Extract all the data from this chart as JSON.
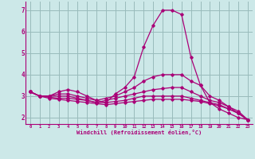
{
  "xlabel": "Windchill (Refroidissement éolien,°C)",
  "bg_color": "#cce8e8",
  "line_color": "#aa0077",
  "grid_color": "#99bbbb",
  "xlim": [
    -0.5,
    23.5
  ],
  "ylim": [
    1.7,
    7.4
  ],
  "yticks": [
    2,
    3,
    4,
    5,
    6,
    7
  ],
  "xticks": [
    0,
    1,
    2,
    3,
    4,
    5,
    6,
    7,
    8,
    9,
    10,
    11,
    12,
    13,
    14,
    15,
    16,
    17,
    18,
    19,
    20,
    21,
    22,
    23
  ],
  "series": [
    [
      3.2,
      3.0,
      3.0,
      3.2,
      3.3,
      3.2,
      3.0,
      2.8,
      2.7,
      3.1,
      3.4,
      3.9,
      5.3,
      6.3,
      7.0,
      7.0,
      6.8,
      4.8,
      3.5,
      2.7,
      2.4,
      2.2,
      2.0,
      1.9
    ],
    [
      3.2,
      3.0,
      3.0,
      3.1,
      3.1,
      3.0,
      2.9,
      2.8,
      2.9,
      3.0,
      3.2,
      3.4,
      3.7,
      3.9,
      4.0,
      4.0,
      4.0,
      3.7,
      3.5,
      3.0,
      2.8,
      2.5,
      2.3,
      1.9
    ],
    [
      3.2,
      3.0,
      3.0,
      3.0,
      3.0,
      2.9,
      2.8,
      2.7,
      2.8,
      2.9,
      3.0,
      3.1,
      3.2,
      3.3,
      3.35,
      3.4,
      3.4,
      3.2,
      3.0,
      2.8,
      2.7,
      2.5,
      2.2,
      1.9
    ],
    [
      3.2,
      3.0,
      2.95,
      2.9,
      2.9,
      2.85,
      2.8,
      2.7,
      2.7,
      2.75,
      2.8,
      2.9,
      3.0,
      3.0,
      3.0,
      3.0,
      3.0,
      2.9,
      2.8,
      2.7,
      2.6,
      2.4,
      2.2,
      1.9
    ],
    [
      3.2,
      3.0,
      2.9,
      2.85,
      2.8,
      2.75,
      2.7,
      2.65,
      2.6,
      2.65,
      2.7,
      2.75,
      2.8,
      2.85,
      2.85,
      2.85,
      2.85,
      2.8,
      2.75,
      2.65,
      2.55,
      2.4,
      2.2,
      1.9
    ]
  ]
}
